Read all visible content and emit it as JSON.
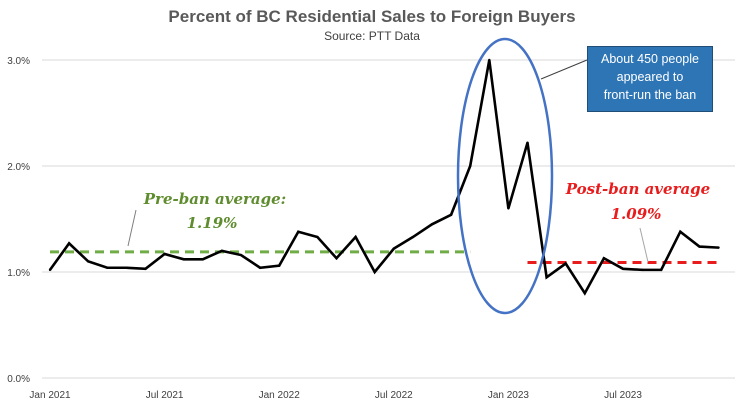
{
  "chart_data": {
    "type": "line",
    "title": "Percent of BC Residential Sales to Foreign Buyers",
    "subtitle": "Source: PTT Data",
    "xlabel": "",
    "ylabel": "",
    "y_ticks": [
      "0.0%",
      "1.0%",
      "2.0%",
      "3.0%"
    ],
    "ylim": [
      0,
      3.0
    ],
    "x_ticks": [
      "Jan 2021",
      "Jul 2021",
      "Jan 2022",
      "Jul 2022",
      "Jan 2023",
      "Jul 2023"
    ],
    "x": [
      "2021-01",
      "2021-02",
      "2021-03",
      "2021-04",
      "2021-05",
      "2021-06",
      "2021-07",
      "2021-08",
      "2021-09",
      "2021-10",
      "2021-11",
      "2021-12",
      "2022-01",
      "2022-02",
      "2022-03",
      "2022-04",
      "2022-05",
      "2022-06",
      "2022-07",
      "2022-08",
      "2022-09",
      "2022-10",
      "2022-11",
      "2022-12",
      "2023-01",
      "2023-02",
      "2023-03",
      "2023-04",
      "2023-05",
      "2023-06",
      "2023-07",
      "2023-08",
      "2023-09",
      "2023-10",
      "2023-11",
      "2023-12"
    ],
    "series": [
      {
        "values": [
          1.02,
          1.27,
          1.1,
          1.04,
          1.04,
          1.03,
          1.17,
          1.12,
          1.12,
          1.2,
          1.16,
          1.04,
          1.06,
          1.38,
          1.33,
          1.13,
          1.33,
          1.0,
          1.22,
          1.33,
          1.45,
          1.54,
          2.0,
          3.0,
          1.6,
          2.22,
          0.95,
          1.08,
          0.8,
          1.13,
          1.03,
          1.02,
          1.02,
          1.38,
          1.24,
          1.23
        ],
        "color": "#000000"
      }
    ],
    "reference_lines": [
      {
        "value": 1.19,
        "from": "2021-01",
        "to": "2022-11",
        "color": "#70ad47",
        "style": "dashed"
      },
      {
        "value": 1.09,
        "from": "2023-02",
        "to": "2023-12",
        "color": "#e81c1c",
        "style": "dashed"
      }
    ],
    "grid": true
  },
  "annotations": {
    "pre_ban_title": "Pre-ban average:",
    "pre_ban_value": "1.19%",
    "post_ban_title": "Post-ban average",
    "post_ban_value": "1.09%",
    "callout_lines": [
      "About 450 people",
      "appeared to",
      "front-run the ban"
    ]
  },
  "colors": {
    "line": "#000000",
    "pre_ban": "#70ad47",
    "post_ban": "#e81c1c",
    "ellipse": "#4472c4",
    "callout_fill": "#2e75b6",
    "grid": "#d9d9d9"
  }
}
